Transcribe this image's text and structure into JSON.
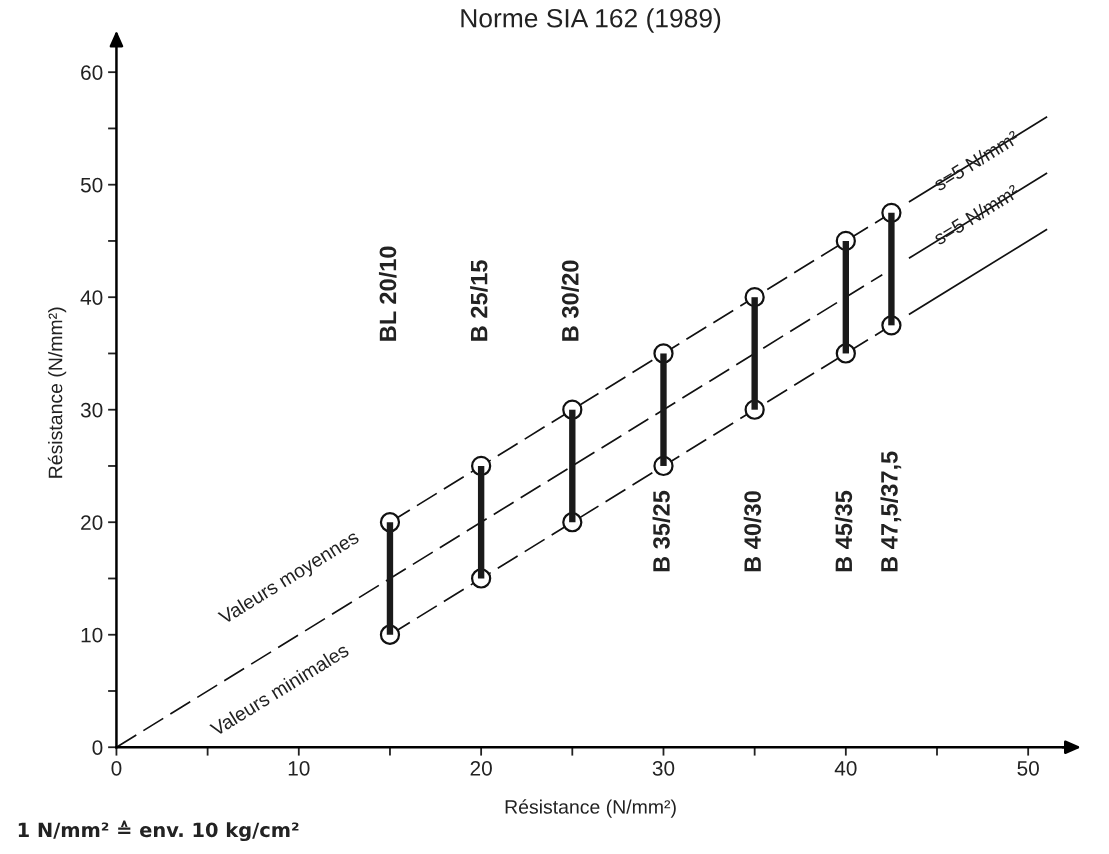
{
  "chart_data": {
    "type": "line",
    "title": "Norme SIA 162 (1989)",
    "xlabel": "Résistance (N/mm²)",
    "ylabel": "Résistance (N/mm²)",
    "xlim": [
      0,
      52
    ],
    "ylim": [
      0,
      63
    ],
    "xticks": [
      0,
      {
        "value": 5,
        "label": null
      },
      10,
      {
        "value": 15,
        "label": null
      },
      20,
      {
        "value": 25,
        "label": null
      },
      30,
      {
        "value": 35,
        "label": null
      },
      40,
      {
        "value": 45,
        "label": null
      },
      50
    ],
    "yticks": [
      0,
      {
        "value": 5,
        "label": null
      },
      10,
      {
        "value": 15,
        "label": null
      },
      20,
      {
        "value": 25,
        "label": null
      },
      30,
      {
        "value": 35,
        "label": null
      },
      40,
      {
        "value": 45,
        "label": null
      },
      50,
      {
        "value": 55,
        "label": null
      },
      60
    ],
    "grid": false,
    "series": [
      {
        "color": "#111111",
        "line_style": "dashed",
        "marker": "circle",
        "x": [
          15,
          20,
          25,
          30,
          35,
          40,
          42.5
        ],
        "values": [
          20,
          25,
          30,
          35,
          40,
          45,
          47.5
        ]
      },
      {
        "color": "#111111",
        "line_style": "solid",
        "x": [
          43.5,
          51
        ],
        "values": [
          48.5,
          56
        ]
      },
      {
        "color": "#111111",
        "line_style": "dashed",
        "x": [
          0,
          42
        ],
        "values": [
          0,
          42
        ]
      },
      {
        "color": "#111111",
        "line_style": "solid",
        "x": [
          43.5,
          51
        ],
        "values": [
          43.5,
          51
        ]
      },
      {
        "color": "#111111",
        "line_style": "dashed",
        "marker": "circle",
        "x": [
          15,
          20,
          25,
          30,
          35,
          40,
          42.5
        ],
        "values": [
          10,
          15,
          20,
          25,
          30,
          35,
          37.5
        ]
      },
      {
        "color": "#111111",
        "line_style": "solid",
        "x": [
          43.5,
          51
        ],
        "values": [
          38.5,
          46
        ]
      },
      {
        "type": "bar",
        "color": "#1a1a1a",
        "x": [
          15,
          20,
          25,
          30,
          35,
          40,
          42.5
        ],
        "base": [
          10,
          15,
          20,
          25,
          30,
          35,
          37.5
        ],
        "values": [
          10,
          10,
          10,
          10,
          10,
          10,
          10
        ]
      }
    ],
    "annotations": [
      "BL 20/10",
      "B 25/15",
      "B 30/20",
      "B 35/25",
      "B 40/30",
      "B 45/35",
      "B 47,5/37,5",
      "Valeurs moyennes",
      "Valeurs minimales",
      "s=5 N/mm²",
      "s=5 N/mm²",
      "1 N/mm² ≙ env. 10 kg/cm²"
    ]
  }
}
